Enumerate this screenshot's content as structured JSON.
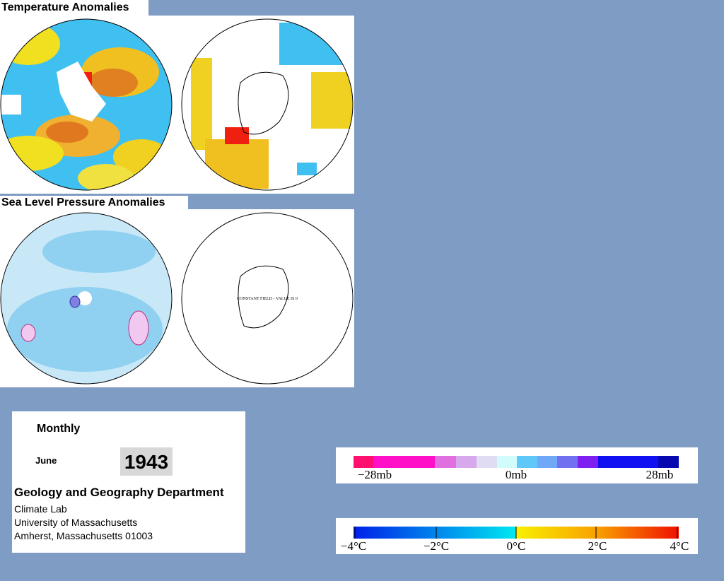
{
  "sections": [
    {
      "title": "Temperature Anomalies"
    },
    {
      "title": "Sea Level Pressure Anomalies"
    }
  ],
  "map_note": "CONSTANT FIELD - VALUE IS 0",
  "info": {
    "period": "Monthly",
    "month": "June",
    "year": "1943",
    "department": "Geology and Geography Department",
    "lines": [
      "Climate Lab",
      "University of Massachusetts",
      "Amherst, Massachusetts 01003"
    ]
  },
  "pressure_legend": {
    "labels": [
      "−28mb",
      "0mb",
      "28mb"
    ]
  },
  "temperature_legend": {
    "labels": [
      "−4°C",
      "−2°C",
      "0°C",
      "2°C",
      "4°C"
    ]
  }
}
